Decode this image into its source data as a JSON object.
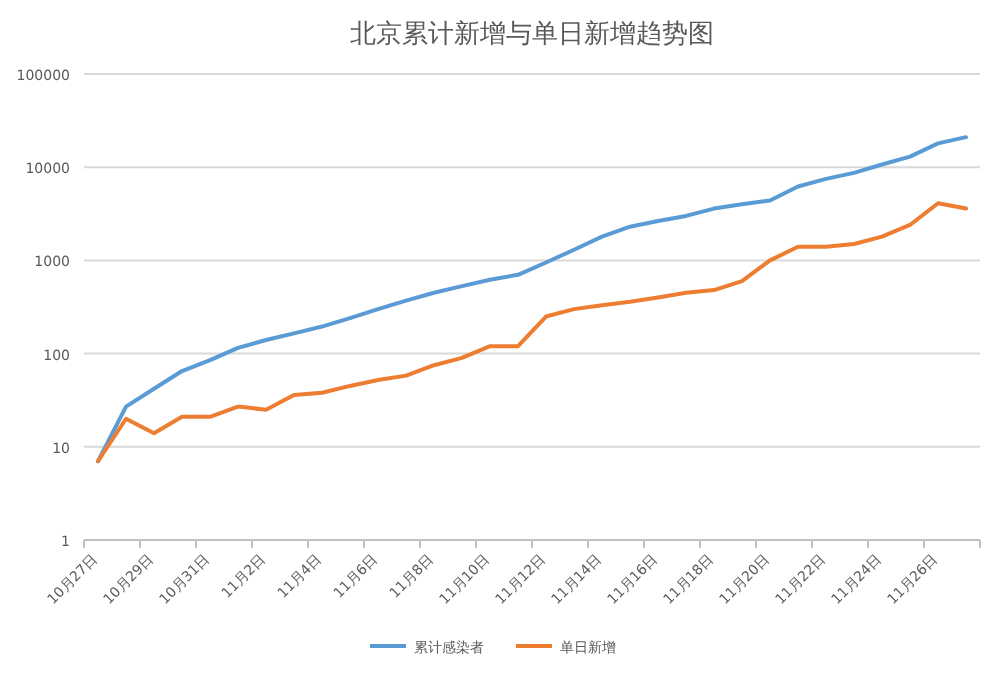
{
  "chart_data": {
    "type": "line",
    "title": "北京累计新增与单日新增趋势图",
    "categories": [
      "10月27日",
      null,
      "10月29日",
      null,
      "10月31日",
      null,
      "11月2日",
      null,
      "11月4日",
      null,
      "11月6日",
      null,
      "11月8日",
      null,
      "11月10日",
      null,
      "11月12日",
      null,
      "11月14日",
      null,
      "11月16日",
      null,
      "11月18日",
      null,
      "11月20日",
      null,
      "11月22日",
      null,
      "11月24日",
      null,
      "11月26日",
      null
    ],
    "series": [
      {
        "name": "累计感染者",
        "color": "#5b9bd5",
        "values": [
          7,
          27,
          42,
          65,
          85,
          115,
          140,
          165,
          195,
          240,
          300,
          370,
          450,
          530,
          620,
          700,
          950,
          1300,
          1800,
          2300,
          2650,
          3000,
          3600,
          4000,
          4400,
          6200,
          7500,
          8700,
          10700,
          13000,
          18000,
          21000
        ]
      },
      {
        "name": "单日新增",
        "color": "#ed7d31",
        "values": [
          7,
          20,
          14,
          21,
          21,
          27,
          25,
          36,
          38,
          45,
          52,
          58,
          75,
          90,
          120,
          120,
          250,
          300,
          330,
          360,
          400,
          450,
          480,
          600,
          1000,
          1400,
          1400,
          1500,
          1800,
          2400,
          4100,
          3600
        ]
      }
    ],
    "log": "y",
    "ylim": [
      1,
      100000
    ],
    "yticks": [
      1,
      10,
      100,
      1000,
      10000,
      100000
    ],
    "grid": "y",
    "legend": "bottom"
  }
}
